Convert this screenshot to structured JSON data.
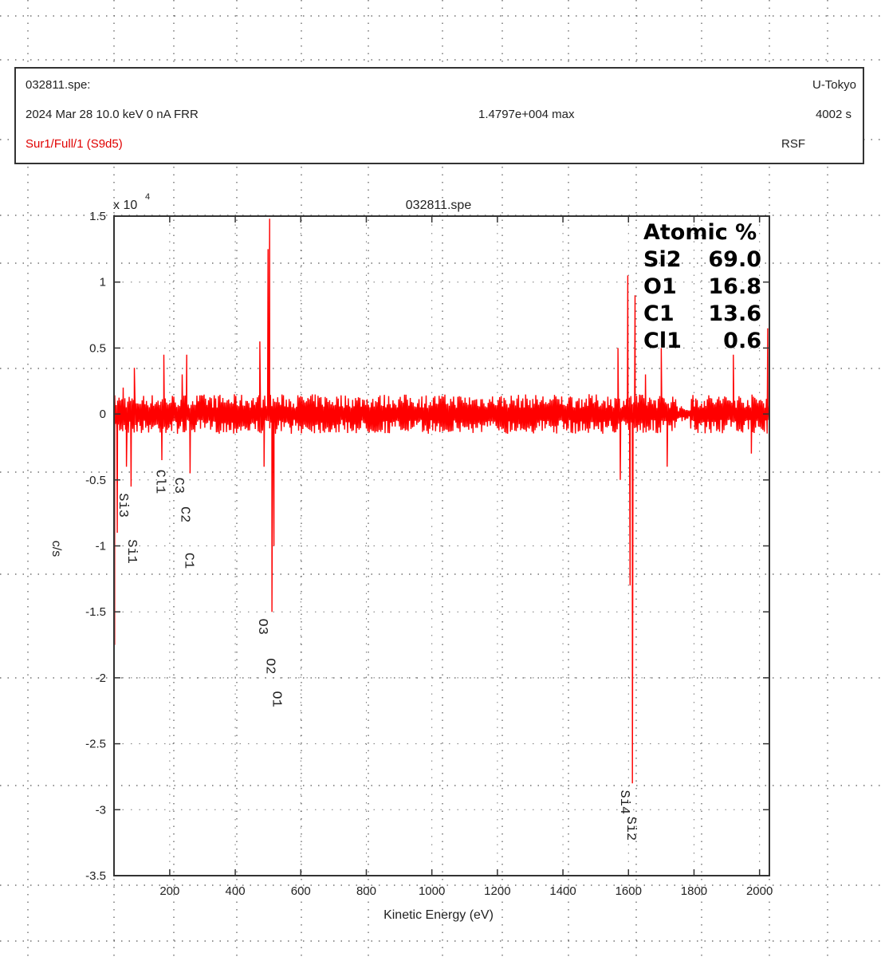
{
  "header": {
    "filename": "032811.spe:",
    "institution": "U-Tokyo",
    "acquisition": "2024 Mar 28  10.0 keV   0 nA   FRR",
    "max": "1.4797e+004 max",
    "time": "4002 s",
    "region": "Sur1/Full/1 (S9d5)",
    "mode": "RSF",
    "region_color": "#e00000"
  },
  "chart_data": {
    "type": "line",
    "title": "032811.spe",
    "xlabel": "Kinetic Energy (eV)",
    "ylabel": "c/s",
    "y_multiplier": "x 10",
    "y_exponent": "4",
    "xlim": [
      30,
      2030
    ],
    "ylim": [
      -3.5,
      1.5
    ],
    "x_ticks": [
      200,
      400,
      600,
      800,
      1000,
      1200,
      1400,
      1600,
      1800,
      2000
    ],
    "x_tick_labels": [
      "200",
      "400",
      "600",
      "800",
      "1000",
      "1200",
      "1400",
      "1600",
      "1800",
      "2000"
    ],
    "y_ticks": [
      1.5,
      1,
      0.5,
      0,
      -0.5,
      -1,
      -1.5,
      -2,
      -2.5,
      -3,
      -3.5
    ],
    "y_tick_labels": [
      "1.5",
      "1",
      "0.5",
      "0",
      "-0.5",
      "-1",
      "-1.5",
      "-2",
      "-2.5",
      "-3",
      "-3.5"
    ],
    "series": [
      {
        "color": "#ff0000",
        "noise_amplitude": 0.15,
        "features": [
          {
            "x": 32,
            "y": -1.75
          },
          {
            "x": 40,
            "y": -0.9
          },
          {
            "x": 58,
            "y": 0.2
          },
          {
            "x": 68,
            "y": -0.4
          },
          {
            "x": 82,
            "y": -0.55
          },
          {
            "x": 92,
            "y": 0.35
          },
          {
            "x": 176,
            "y": -0.35
          },
          {
            "x": 182,
            "y": 0.45
          },
          {
            "x": 238,
            "y": 0.3
          },
          {
            "x": 252,
            "y": 0.45
          },
          {
            "x": 262,
            "y": -0.45
          },
          {
            "x": 475,
            "y": 0.55
          },
          {
            "x": 488,
            "y": -0.4
          },
          {
            "x": 500,
            "y": 1.25
          },
          {
            "x": 505,
            "y": 1.48
          },
          {
            "x": 512,
            "y": -1.5
          },
          {
            "x": 518,
            "y": -1.0
          },
          {
            "x": 1568,
            "y": 0.5
          },
          {
            "x": 1575,
            "y": -0.5
          },
          {
            "x": 1598,
            "y": 1.05
          },
          {
            "x": 1605,
            "y": -1.3
          },
          {
            "x": 1612,
            "y": -2.8
          },
          {
            "x": 1620,
            "y": 0.9
          },
          {
            "x": 1652,
            "y": 0.3
          },
          {
            "x": 1700,
            "y": 0.5
          },
          {
            "x": 1718,
            "y": -0.4
          },
          {
            "x": 1920,
            "y": 0.45
          },
          {
            "x": 1975,
            "y": -0.3
          },
          {
            "x": 2025,
            "y": 0.65
          }
        ]
      }
    ],
    "peak_labels": [
      {
        "text": "Si3",
        "x": 62,
        "y": -0.6
      },
      {
        "text": "Si1",
        "x": 88,
        "y": -0.95
      },
      {
        "text": "Cl1",
        "x": 175,
        "y": -0.42
      },
      {
        "text": "C3",
        "x": 232,
        "y": -0.48
      },
      {
        "text": "C2",
        "x": 250,
        "y": -0.7
      },
      {
        "text": "C1",
        "x": 262,
        "y": -1.05
      },
      {
        "text": "O3",
        "x": 488,
        "y": -1.55
      },
      {
        "text": "O2",
        "x": 510,
        "y": -1.85
      },
      {
        "text": "O1",
        "x": 530,
        "y": -2.1
      },
      {
        "text": "Si4",
        "x": 1592,
        "y": -2.85
      },
      {
        "text": "Si2",
        "x": 1612,
        "y": -3.05
      }
    ],
    "annotation": {
      "title": "Atomic %",
      "rows": [
        {
          "element": "Si2",
          "value": "69.0"
        },
        {
          "element": "O1",
          "value": "16.8"
        },
        {
          "element": "C1",
          "value": "13.6"
        },
        {
          "element": "Cl1",
          "value": "0.6"
        }
      ]
    }
  }
}
